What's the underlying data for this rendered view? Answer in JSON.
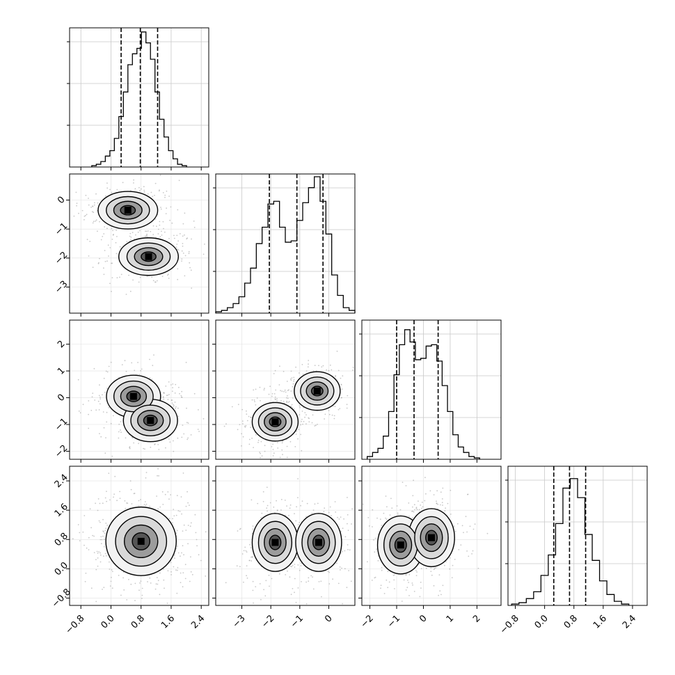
{
  "chart_data": {
    "type": "corner",
    "title": "",
    "grid": true,
    "parameters": [
      {
        "lim": [
          -1.1,
          2.6
        ],
        "ticks": [
          -0.8,
          0.0,
          0.8,
          1.6,
          2.4
        ],
        "tick_labels": [
          "−0.8",
          "0.0",
          "0.8",
          "1.6",
          "2.4"
        ],
        "quantiles": [
          0.27,
          0.78,
          1.24
        ],
        "histogram": {
          "x": [
            -0.45,
            -0.33,
            -0.21,
            -0.09,
            0.03,
            0.15,
            0.27,
            0.39,
            0.51,
            0.63,
            0.75,
            0.87,
            0.99,
            1.11,
            1.23,
            1.35,
            1.47,
            1.59,
            1.71,
            1.83,
            1.95
          ],
          "counts": [
            0.01,
            0.02,
            0.04,
            0.08,
            0.12,
            0.21,
            0.37,
            0.55,
            0.75,
            0.83,
            0.87,
            0.99,
            0.91,
            0.79,
            0.55,
            0.35,
            0.22,
            0.12,
            0.06,
            0.02,
            0.01
          ]
        }
      },
      {
        "lim": [
          -3.9,
          0.9
        ],
        "ticks": [
          -3,
          -2,
          -1,
          0
        ],
        "tick_labels": [
          "−3",
          "−2",
          "−1",
          "0"
        ],
        "quantiles": [
          -2.05,
          -1.1,
          -0.2
        ],
        "histogram": {
          "x": [
            -3.8,
            -3.6,
            -3.4,
            -3.2,
            -3.0,
            -2.8,
            -2.6,
            -2.4,
            -2.2,
            -2.0,
            -1.8,
            -1.6,
            -1.4,
            -1.2,
            -1.0,
            -0.8,
            -0.6,
            -0.4,
            -0.2,
            0.0,
            0.2,
            0.4,
            0.6,
            0.8
          ],
          "counts": [
            0.01,
            0.02,
            0.04,
            0.07,
            0.12,
            0.22,
            0.33,
            0.51,
            0.63,
            0.8,
            0.82,
            0.63,
            0.52,
            0.53,
            0.68,
            0.81,
            0.92,
            1.0,
            0.82,
            0.58,
            0.28,
            0.13,
            0.04,
            0.02
          ]
        }
      },
      {
        "lim": [
          -2.3,
          2.9
        ],
        "ticks": [
          -2,
          -1,
          0,
          1,
          2
        ],
        "tick_labels": [
          "−2",
          "−1",
          "0",
          "1",
          "2"
        ],
        "quantiles": [
          -1.0,
          -0.35,
          0.55
        ],
        "histogram": {
          "x": [
            -2.0,
            -1.8,
            -1.6,
            -1.4,
            -1.2,
            -1.0,
            -0.8,
            -0.6,
            -0.4,
            -0.2,
            0.0,
            0.2,
            0.4,
            0.6,
            0.8,
            1.0,
            1.2,
            1.4,
            1.6,
            1.8,
            2.0
          ],
          "counts": [
            0.02,
            0.05,
            0.08,
            0.17,
            0.35,
            0.62,
            0.84,
            0.95,
            0.86,
            0.73,
            0.74,
            0.83,
            0.84,
            0.72,
            0.54,
            0.35,
            0.18,
            0.09,
            0.05,
            0.02,
            0.01
          ]
        }
      },
      {
        "lim": [
          -1.0,
          2.8
        ],
        "ticks": [
          -0.8,
          0.0,
          0.8,
          1.6,
          2.4
        ],
        "tick_labels": [
          "−0.8",
          "0.0",
          "0.8",
          "1.6",
          "2.4"
        ],
        "quantiles": [
          0.25,
          0.68,
          1.12
        ],
        "histogram": {
          "x": [
            -0.8,
            -0.6,
            -0.4,
            -0.2,
            0.0,
            0.2,
            0.4,
            0.6,
            0.8,
            1.0,
            1.2,
            1.4,
            1.6,
            1.8,
            2.0,
            2.2
          ],
          "counts": [
            0.01,
            0.02,
            0.05,
            0.1,
            0.22,
            0.37,
            0.6,
            0.86,
            0.93,
            0.79,
            0.52,
            0.33,
            0.18,
            0.08,
            0.03,
            0.01
          ]
        }
      }
    ],
    "joint": [
      {
        "row": 1,
        "col": 0,
        "modes": [
          [
            0.45,
            -0.35
          ],
          [
            1.0,
            -1.95
          ]
        ],
        "extent": [
          0.55,
          0.45
        ]
      },
      {
        "row": 2,
        "col": 0,
        "modes": [
          [
            0.6,
            0.05
          ],
          [
            1.05,
            -0.85
          ]
        ],
        "extent": [
          0.5,
          0.55
        ]
      },
      {
        "row": 2,
        "col": 1,
        "modes": [
          [
            -1.85,
            -0.9
          ],
          [
            -0.4,
            0.25
          ]
        ],
        "extent": [
          0.55,
          0.5
        ]
      },
      {
        "row": 3,
        "col": 0,
        "modes": [
          [
            0.8,
            0.75
          ]
        ],
        "extent": [
          0.65,
          0.65
        ]
      },
      {
        "row": 3,
        "col": 1,
        "modes": [
          [
            -1.85,
            0.72
          ],
          [
            -0.35,
            0.72
          ]
        ],
        "extent": [
          0.55,
          0.55
        ]
      },
      {
        "row": 3,
        "col": 2,
        "modes": [
          [
            -0.85,
            0.65
          ],
          [
            0.3,
            0.85
          ]
        ],
        "extent": [
          0.6,
          0.55
        ]
      }
    ]
  }
}
